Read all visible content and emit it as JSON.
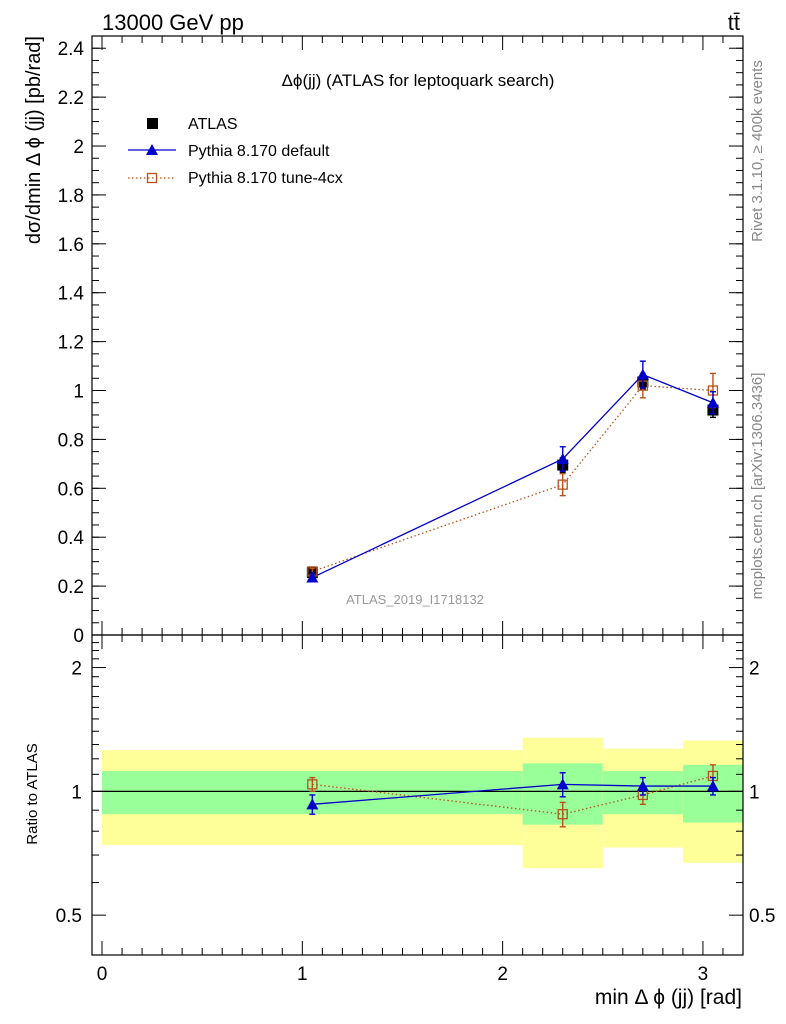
{
  "header": {
    "left": "13000 GeV pp",
    "right": "tt̄"
  },
  "side_labels": {
    "rivet": "Rivet 3.1.10, ≥ 400k events",
    "mcplots": "mcplots.cern.ch [arXiv:1306.3436]"
  },
  "chart_data": {
    "type": "scatter",
    "title": "Δϕ(jj) (ATLAS for leptoquark search)",
    "watermark": "ATLAS_2019_I1718132",
    "xlabel": "min Δ ϕ (jj) [rad]",
    "ylabel": "dσ/dmin Δ ϕ (jj) [pb/rad]",
    "ratio_ylabel": "Ratio to ATLAS",
    "xlim": [
      -0.05,
      3.2
    ],
    "ylim": [
      0,
      2.45
    ],
    "ratio_ylim": [
      0.4,
      2.4
    ],
    "x_ticks": [
      "0",
      "1",
      "2",
      "3"
    ],
    "y_ticks": [
      "0",
      "0.2",
      "0.4",
      "0.6",
      "0.8",
      "1",
      "1.2",
      "1.4",
      "1.6",
      "1.8",
      "2",
      "2.2",
      "2.4"
    ],
    "ratio_ticks_left": [
      "0.5",
      "1",
      "2"
    ],
    "ratio_ticks_right": [
      "0.5",
      "1",
      "2"
    ],
    "legend_position": "top-left",
    "bins": [
      [
        0,
        2.1
      ],
      [
        2.1,
        2.5
      ],
      [
        2.5,
        2.9
      ],
      [
        2.9,
        3.2
      ]
    ],
    "series": [
      {
        "name": "ATLAS",
        "style": "data",
        "color": "#000000",
        "x": [
          1.05,
          2.3,
          2.7,
          3.05
        ],
        "y": [
          0.255,
          0.695,
          1.035,
          0.92
        ],
        "yerr": [
          0.02,
          0.03,
          0.03,
          0.03
        ],
        "ratio_band_inner": [
          0.12,
          0.17,
          0.12,
          0.16
        ],
        "ratio_band_outer": [
          0.26,
          0.35,
          0.27,
          0.33
        ]
      },
      {
        "name": "Pythia 8.170 default",
        "style": "solid-triangle",
        "color": "#0000cc",
        "x": [
          1.05,
          2.3,
          2.7,
          3.05
        ],
        "y": [
          0.235,
          0.72,
          1.065,
          0.95
        ],
        "yerr": [
          0.015,
          0.05,
          0.055,
          0.045
        ],
        "ratio": [
          0.93,
          1.04,
          1.03,
          1.03
        ],
        "ratio_err": [
          0.05,
          0.07,
          0.05,
          0.05
        ]
      },
      {
        "name": "Pythia 8.170 tune-4cx",
        "style": "dotted-open-square",
        "color": "#b8521c",
        "x": [
          1.05,
          2.3,
          2.7,
          3.05
        ],
        "y": [
          0.26,
          0.615,
          1.02,
          1.0
        ],
        "yerr": [
          0.012,
          0.045,
          0.05,
          0.07
        ],
        "ratio": [
          1.04,
          0.88,
          0.98,
          1.09
        ],
        "ratio_err": [
          0.04,
          0.06,
          0.05,
          0.07
        ]
      }
    ]
  }
}
